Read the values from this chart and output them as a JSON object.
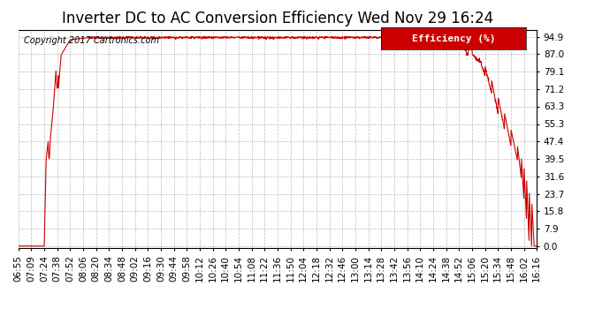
{
  "title": "Inverter DC to AC Conversion Efficiency Wed Nov 29 16:24",
  "copyright": "Copyright 2017 Cartronics.com",
  "legend_label": "Efficiency (%)",
  "legend_bg": "#cc0000",
  "legend_text_color": "#ffffff",
  "line_color": "#cc0000",
  "background_color": "#ffffff",
  "grid_color": "#bbbbbb",
  "y_ticks": [
    0.0,
    7.9,
    15.8,
    23.7,
    31.6,
    39.5,
    47.4,
    55.3,
    63.3,
    71.2,
    79.1,
    87.0,
    94.9
  ],
  "x_tick_labels": [
    "06:55",
    "07:09",
    "07:24",
    "07:38",
    "07:52",
    "08:06",
    "08:20",
    "08:34",
    "08:48",
    "09:02",
    "09:16",
    "09:30",
    "09:44",
    "09:58",
    "10:12",
    "10:26",
    "10:40",
    "10:54",
    "11:08",
    "11:22",
    "11:36",
    "11:50",
    "12:04",
    "12:18",
    "12:32",
    "12:46",
    "13:00",
    "13:14",
    "13:28",
    "13:42",
    "13:56",
    "14:10",
    "14:24",
    "14:38",
    "14:52",
    "15:06",
    "15:20",
    "15:34",
    "15:48",
    "16:02",
    "16:16"
  ],
  "ylim": [
    0.0,
    94.9
  ],
  "title_fontsize": 12,
  "axis_fontsize": 7.5,
  "copyright_fontsize": 7
}
